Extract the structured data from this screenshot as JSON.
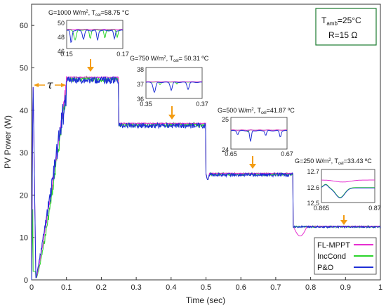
{
  "chart_data": {
    "type": "line",
    "xlabel": "Time (sec)",
    "ylabel": "PV Power (W)",
    "xlim": [
      0,
      1
    ],
    "ylim": [
      0,
      65
    ],
    "xticks": [
      "0",
      "0.1",
      "0.2",
      "0.3",
      "0.4",
      "0.5",
      "0.6",
      "0.7",
      "0.8",
      "0.9",
      "1"
    ],
    "yticks": [
      "0",
      "10",
      "20",
      "30",
      "40",
      "50",
      "60"
    ],
    "legend_position": "bottom-right",
    "series": [
      {
        "name": "FL-MPPT",
        "color": "#e62fd0"
      },
      {
        "name": "IncCond",
        "color": "#2bd42b"
      },
      {
        "name": "P&O",
        "color": "#1f2fd6"
      }
    ],
    "steady_levels": [
      {
        "t_start": 0.1,
        "t_end": 0.25,
        "power": 47.9
      },
      {
        "t_start": 0.25,
        "t_end": 0.5,
        "power": 37.0
      },
      {
        "t_start": 0.5,
        "t_end": 0.75,
        "power": 25.2
      },
      {
        "t_start": 0.75,
        "t_end": 1.0,
        "power": 12.7
      }
    ],
    "conditions": {
      "tamb_main": "T",
      "tamb_sub": "amb",
      "tamb_value": "=25°C",
      "resistance": "R=15 Ω"
    },
    "tau_label": "τ",
    "annotations": [
      {
        "g": "G=1000 W/m",
        "sup": "2",
        "mid": ", T",
        "sub": "cel",
        "t": "=58.75 °C"
      },
      {
        "g": "G=750 W/m",
        "sup": "2",
        "mid": ", T",
        "sub": "cel",
        "t": "= 50.31 ºC"
      },
      {
        "g": "G=500 W/m",
        "sup": "2",
        "mid": ", T",
        "sub": "cel",
        "t": "=41.87 ºC"
      },
      {
        "g": "G=250 W/m",
        "sup": "2",
        "mid": ", T",
        "sub": "cel",
        "t": "=33.43 ºC"
      }
    ],
    "insets": [
      {
        "xticks": [
          "0.15",
          "0.17"
        ],
        "yticks": [
          "50",
          "48",
          "46"
        ]
      },
      {
        "xticks": [
          "0.35",
          "0.37"
        ],
        "yticks": [
          "38",
          "37",
          "36"
        ]
      },
      {
        "xticks": [
          "0.65",
          "0.67"
        ],
        "yticks": [
          "25",
          "24"
        ]
      },
      {
        "xticks": [
          "0.865",
          "0.87"
        ],
        "yticks": [
          "12.7",
          "12.6",
          "12.5"
        ]
      }
    ]
  }
}
